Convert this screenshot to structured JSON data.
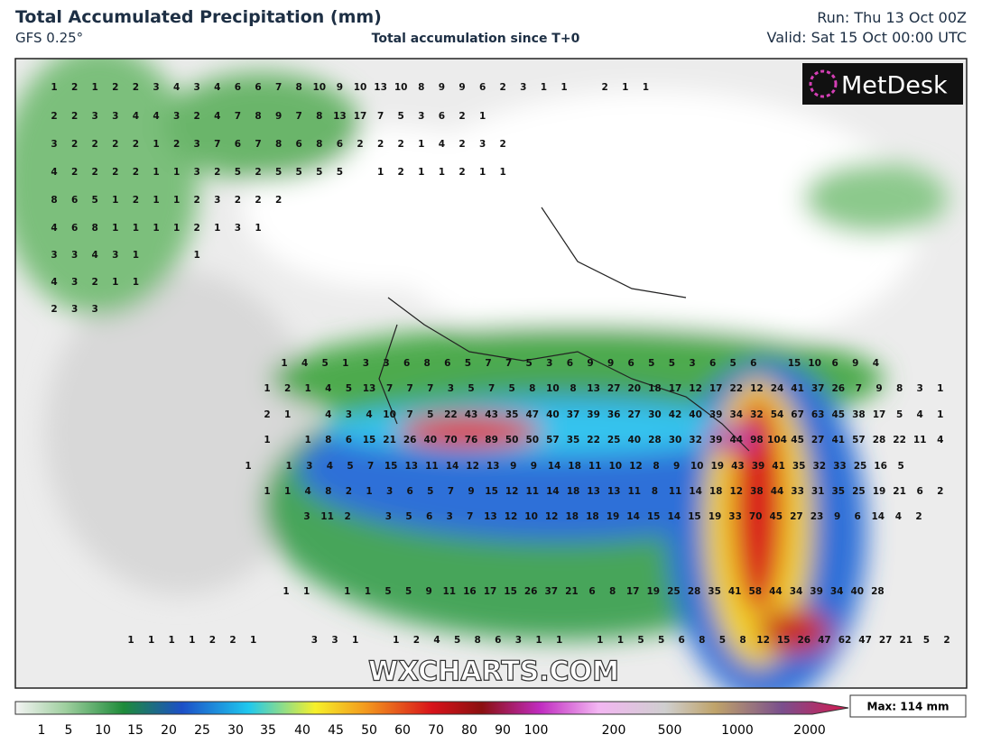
{
  "header": {
    "title": "Total Accumulated Precipitation (mm)",
    "model": "GFS 0.25°",
    "subtitle": "Total accumulation since T+0",
    "run": "Run: Thu 13 Oct 00Z",
    "valid": "Valid: Sat 15 Oct 00:00 UTC"
  },
  "logo": "MetDesk",
  "watermark": "WXCHARTS.COM",
  "legend": {
    "ticks": [
      1,
      5,
      10,
      15,
      20,
      25,
      30,
      35,
      40,
      45,
      50,
      60,
      70,
      80,
      90,
      100,
      200,
      500,
      1000,
      2000
    ],
    "max": "Max: 114 mm"
  },
  "grid": {
    "rows": [
      {
        "values": [
          1,
          2,
          1,
          2,
          2,
          3,
          4,
          3,
          4,
          6,
          6,
          7,
          8,
          10,
          9,
          10,
          13,
          10,
          8,
          9,
          9,
          6,
          2,
          3,
          1,
          1,
          null,
          2,
          1,
          1
        ]
      },
      {
        "values": [
          2,
          2,
          3,
          3,
          4,
          4,
          3,
          2,
          4,
          7,
          8,
          9,
          7,
          8,
          13,
          17,
          7,
          5,
          3,
          6,
          2,
          1
        ]
      },
      {
        "values": [
          3,
          2,
          2,
          2,
          2,
          1,
          2,
          3,
          7,
          6,
          7,
          8,
          6,
          8,
          6,
          2,
          2,
          2,
          1,
          4,
          2,
          3,
          2
        ]
      },
      {
        "values": [
          4,
          2,
          2,
          2,
          2,
          1,
          1,
          3,
          2,
          5,
          2,
          5,
          5,
          5,
          5,
          null,
          1,
          2,
          1,
          1,
          2,
          1,
          1
        ]
      },
      {
        "values": [
          8,
          6,
          5,
          1,
          2,
          1,
          1,
          2,
          3,
          2,
          2,
          2
        ]
      },
      {
        "values": [
          4,
          6,
          8,
          1,
          1,
          1,
          1,
          2,
          1,
          3,
          1
        ]
      },
      {
        "values": [
          3,
          3,
          4,
          3,
          1,
          null,
          null,
          1
        ]
      },
      {
        "values": [
          4,
          3,
          2,
          1,
          1
        ]
      },
      {
        "values": [
          2,
          3,
          3
        ]
      },
      {
        "values": [
          1,
          4,
          5,
          1,
          3,
          3,
          6,
          8,
          6,
          5,
          7,
          7,
          5,
          3,
          6,
          9,
          9,
          6,
          5,
          5,
          3,
          6,
          5,
          6,
          null,
          15,
          10,
          6,
          9,
          4
        ]
      },
      {
        "values": [
          1,
          2,
          1,
          4,
          5,
          13,
          7,
          7,
          7,
          3,
          5,
          7,
          5,
          8,
          10,
          8,
          13,
          27,
          20,
          18,
          17,
          12,
          17,
          22,
          12,
          24,
          41,
          37,
          26,
          7,
          9,
          8,
          3,
          1
        ]
      },
      {
        "values": [
          2,
          1,
          null,
          4,
          3,
          4,
          10,
          7,
          5,
          22,
          43,
          43,
          35,
          47,
          40,
          37,
          39,
          36,
          27,
          30,
          42,
          40,
          39,
          34,
          32,
          54,
          67,
          63,
          45,
          38,
          17,
          5,
          4,
          1
        ]
      },
      {
        "values": [
          1,
          null,
          1,
          8,
          6,
          15,
          21,
          26,
          40,
          70,
          76,
          89,
          50,
          50,
          57,
          35,
          22,
          25,
          40,
          28,
          30,
          32,
          39,
          44,
          98,
          104,
          45,
          27,
          41,
          57,
          28,
          22,
          11,
          4
        ]
      },
      {
        "values": [
          1,
          null,
          1,
          3,
          4,
          5,
          7,
          15,
          13,
          11,
          14,
          12,
          13,
          9,
          9,
          14,
          18,
          11,
          10,
          12,
          8,
          9,
          10,
          19,
          43,
          39,
          41,
          35,
          32,
          33,
          25,
          16,
          5
        ]
      },
      {
        "values": [
          1,
          1,
          4,
          8,
          2,
          1,
          3,
          6,
          5,
          7,
          9,
          15,
          12,
          11,
          14,
          18,
          13,
          13,
          11,
          8,
          11,
          14,
          18,
          12,
          38,
          44,
          33,
          31,
          35,
          25,
          19,
          21,
          6,
          2
        ]
      },
      {
        "values": [
          3,
          11,
          2,
          null,
          3,
          5,
          6,
          3,
          7,
          13,
          12,
          10,
          12,
          18,
          18,
          19,
          14,
          15,
          14,
          15,
          19,
          33,
          70,
          45,
          27,
          23,
          9,
          6,
          14,
          4,
          2
        ]
      },
      {
        "values": [
          1,
          1,
          null,
          1,
          1,
          5,
          5,
          9,
          11,
          16,
          17,
          15,
          26,
          37,
          21,
          6,
          8,
          17,
          19,
          25,
          28,
          35,
          41,
          58,
          44,
          34,
          39,
          34,
          40,
          28
        ]
      },
      {
        "values": [
          1,
          1,
          1,
          1,
          2,
          2,
          1,
          null,
          null,
          3,
          3,
          1,
          null,
          1,
          2,
          4,
          5,
          8,
          6,
          3,
          1,
          1,
          null,
          1,
          1,
          5,
          5,
          6,
          8,
          5,
          8,
          12,
          15,
          26,
          47,
          62,
          47,
          27,
          21,
          5,
          2
        ]
      }
    ]
  }
}
